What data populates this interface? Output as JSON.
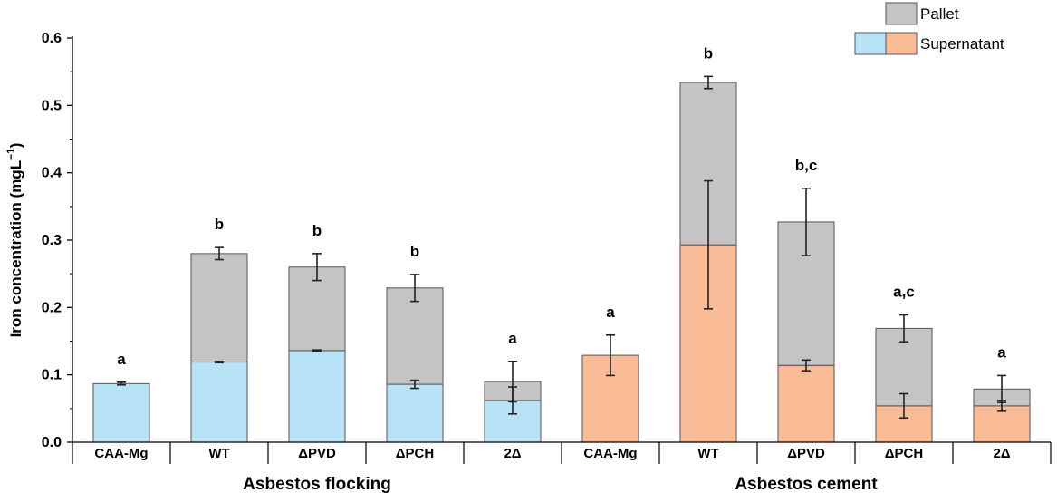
{
  "chart_data": {
    "type": "bar",
    "stacked": true,
    "ylabel": "Iron concentration (mgL",
    "ylabel_superscript": "−1",
    "ylabel_suffix": ")",
    "ylim": [
      0,
      0.6
    ],
    "yticks": [
      "0.0",
      "0.1",
      "0.2",
      "0.3",
      "0.4",
      "0.5",
      "0.6"
    ],
    "ytick_values": [
      0,
      0.1,
      0.2,
      0.3,
      0.4,
      0.5,
      0.6
    ],
    "groups": [
      {
        "name": "Asbestos flocking",
        "start": 0,
        "end": 4
      },
      {
        "name": "Asbestos cement",
        "start": 5,
        "end": 9
      }
    ],
    "categories": [
      "CAA-Mg",
      "WT",
      "ΔPVD",
      "ΔPCH",
      "2Δ",
      "CAA-Mg",
      "WT",
      "ΔPVD",
      "ΔPCH",
      "2Δ"
    ],
    "series": [
      {
        "name": "Supernatant",
        "values": [
          0.087,
          0.119,
          0.136,
          0.086,
          0.062,
          0.129,
          0.293,
          0.114,
          0.054,
          0.054
        ],
        "errors": [
          0.002,
          0.001,
          0.001,
          0.006,
          0.02,
          0.03,
          0.095,
          0.008,
          0.018,
          0.008
        ],
        "colors": [
          "#b8e3f7",
          "#b8e3f7",
          "#b8e3f7",
          "#b8e3f7",
          "#b8e3f7",
          "#f9bb96",
          "#f9bb96",
          "#f9bb96",
          "#f9bb96",
          "#f9bb96"
        ]
      },
      {
        "name": "Pallet",
        "values": [
          0.0,
          0.161,
          0.124,
          0.143,
          0.028,
          0.0,
          0.241,
          0.213,
          0.115,
          0.025
        ],
        "errors": [
          0,
          0.009,
          0.02,
          0.02,
          0.03,
          0,
          0.009,
          0.05,
          0.02,
          0.02
        ],
        "color": "#c4c4c4"
      }
    ],
    "significance": [
      "a",
      "b",
      "b",
      "b",
      "a",
      "a",
      "b",
      "b,c",
      "a,c",
      "a"
    ],
    "legend": [
      {
        "label": "Pallet",
        "colors": [
          "#c4c4c4"
        ]
      },
      {
        "label": "Supernatant",
        "colors": [
          "#b8e3f7",
          "#f9bb96"
        ]
      }
    ],
    "legend_position": "top-right"
  }
}
